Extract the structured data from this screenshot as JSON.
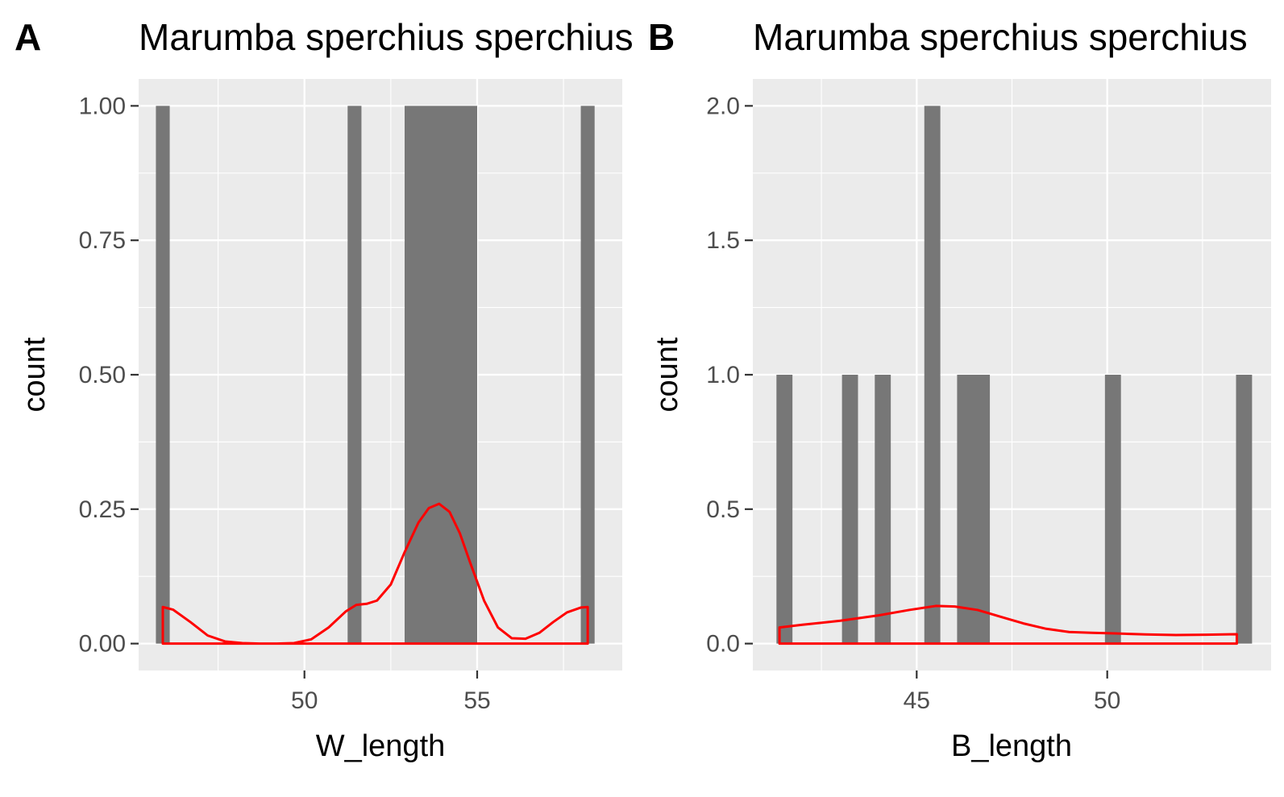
{
  "chart_data": [
    {
      "panel": "A",
      "type": "bar",
      "title": "Marumba sperchius sperchius",
      "xlabel": "W_length",
      "ylabel": "count",
      "xlim": [
        45.2,
        59.2
      ],
      "ylim": [
        -0.05,
        1.05
      ],
      "x_ticks": [
        50,
        55
      ],
      "x_tick_labels": [
        "50",
        "55"
      ],
      "x_minor_ticks": [
        47.5,
        52.5,
        57.5
      ],
      "y_ticks": [
        0,
        0.25,
        0.5,
        0.75,
        1.0
      ],
      "y_tick_labels": [
        "0.00",
        "0.25",
        "0.50",
        "0.75",
        "1.00"
      ],
      "grid": true,
      "bars": [
        {
          "x0": 45.7,
          "x1": 46.1,
          "count": 1
        },
        {
          "x0": 51.25,
          "x1": 51.65,
          "count": 1
        },
        {
          "x0": 52.9,
          "x1": 55.0,
          "count": 1
        },
        {
          "x0": 58.0,
          "x1": 58.4,
          "count": 1
        }
      ],
      "density": {
        "color": "#ff0000",
        "x": [
          45.9,
          46.2,
          46.7,
          47.2,
          47.7,
          48.2,
          48.7,
          49.2,
          49.7,
          50.2,
          50.7,
          51.2,
          51.5,
          51.8,
          52.1,
          52.5,
          52.9,
          53.3,
          53.6,
          53.9,
          54.2,
          54.5,
          54.8,
          55.2,
          55.6,
          56.0,
          56.4,
          56.8,
          57.2,
          57.6,
          58.0,
          58.2
        ],
        "y": [
          0.068,
          0.063,
          0.04,
          0.015,
          0.004,
          0.001,
          0.0,
          0.0,
          0.001,
          0.008,
          0.03,
          0.06,
          0.072,
          0.074,
          0.08,
          0.11,
          0.17,
          0.225,
          0.252,
          0.26,
          0.245,
          0.205,
          0.15,
          0.08,
          0.03,
          0.01,
          0.009,
          0.02,
          0.04,
          0.058,
          0.067,
          0.068
        ]
      }
    },
    {
      "panel": "B",
      "type": "bar",
      "title": "Marumba sperchius sperchius",
      "xlabel": "B_length",
      "ylabel": "count",
      "xlim": [
        40.7,
        54.3
      ],
      "ylim": [
        -0.1,
        2.1
      ],
      "x_ticks": [
        45,
        50
      ],
      "x_tick_labels": [
        "45",
        "50"
      ],
      "x_minor_ticks": [
        42.5,
        47.5,
        52.5
      ],
      "y_ticks": [
        0,
        0.5,
        1.0,
        1.5,
        2.0
      ],
      "y_tick_labels": [
        "0.0",
        "0.5",
        "1.0",
        "1.5",
        "2.0"
      ],
      "grid": true,
      "bars": [
        {
          "x0": 41.32,
          "x1": 41.74,
          "count": 1
        },
        {
          "x0": 43.04,
          "x1": 43.46,
          "count": 1
        },
        {
          "x0": 43.9,
          "x1": 44.32,
          "count": 1
        },
        {
          "x0": 45.2,
          "x1": 45.62,
          "count": 2
        },
        {
          "x0": 46.06,
          "x1": 46.92,
          "count": 1
        },
        {
          "x0": 49.94,
          "x1": 50.36,
          "count": 1
        },
        {
          "x0": 53.38,
          "x1": 53.8,
          "count": 1
        }
      ],
      "density": {
        "color": "#ff0000",
        "x": [
          41.4,
          42.0,
          43.0,
          44.0,
          44.8,
          45.5,
          46.0,
          46.6,
          47.2,
          47.8,
          48.4,
          49.0,
          49.6,
          50.2,
          51.0,
          51.8,
          52.6,
          53.4
        ],
        "y": [
          0.06,
          0.07,
          0.085,
          0.105,
          0.125,
          0.14,
          0.138,
          0.125,
          0.1,
          0.075,
          0.055,
          0.043,
          0.04,
          0.038,
          0.034,
          0.032,
          0.033,
          0.035
        ]
      }
    }
  ]
}
